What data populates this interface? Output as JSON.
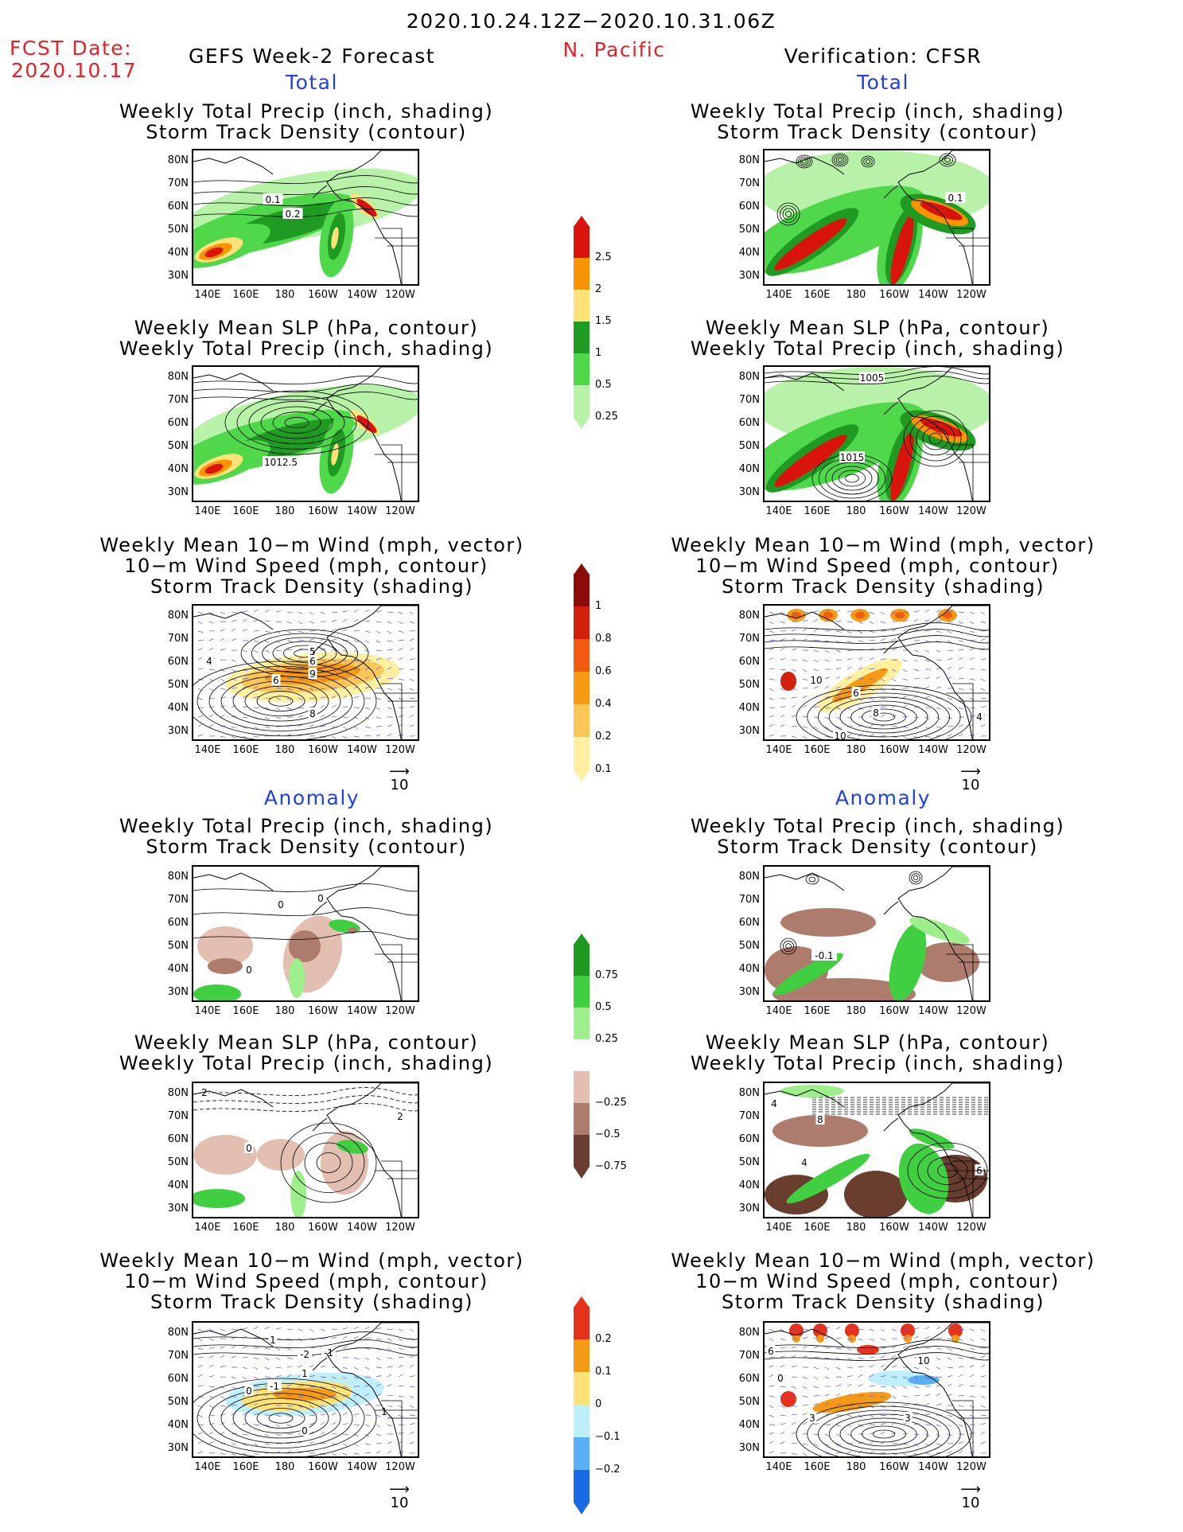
{
  "header": {
    "period": "2020.10.24.12Z−2020.10.31.06Z",
    "fcst_label": "FCST Date:",
    "fcst_date": "2020.10.17",
    "forecast_title": "GEFS Week-2 Forecast",
    "region": "N. Pacific",
    "verification_title": "Verification: CFSR"
  },
  "sections": {
    "total": "Total",
    "anomaly": "Anomaly"
  },
  "titles": {
    "precip_track": [
      "Weekly Total Precip (inch, shading)",
      "Storm Track Density (contour)"
    ],
    "slp_precip": [
      "Weekly Mean SLP (hPa, contour)",
      "Weekly Total Precip (inch, shading)"
    ],
    "wind_track": [
      "Weekly Mean 10−m Wind (mph, vector)",
      "10−m Wind Speed (mph, contour)",
      "Storm Track Density (shading)"
    ]
  },
  "axes": {
    "lat": [
      "80N",
      "70N",
      "60N",
      "50N",
      "40N",
      "30N"
    ],
    "lon": [
      "140E",
      "160E",
      "180",
      "160W",
      "140W",
      "120W"
    ]
  },
  "vector_ref": "10",
  "contour_labels": {
    "p1": [
      "0.1",
      "0.2"
    ],
    "p2": [
      "1012.5"
    ],
    "p3": [
      "4",
      "6",
      "9",
      "8",
      "6",
      "5"
    ],
    "v1": [
      "0.1"
    ],
    "v2": [
      "1005",
      "1015"
    ],
    "v3": [
      "10",
      "6",
      "8",
      "10",
      "4"
    ],
    "a1": [
      "0",
      "0",
      "0"
    ],
    "a2": [
      "2",
      "0",
      "2"
    ],
    "a3": [
      "1",
      "-2",
      "-1",
      "0",
      "-1",
      "1",
      "1",
      "0"
    ],
    "b1": [
      "-0.1"
    ],
    "b2": [
      "4",
      "8",
      "4",
      "6"
    ],
    "b3": [
      "6",
      "0",
      "10",
      "3",
      "3"
    ]
  },
  "colorbars": {
    "precip_total": {
      "labels": [
        "2.5",
        "2",
        "1.5",
        "1",
        "0.5",
        "0.25"
      ],
      "colors": [
        "#d9140c",
        "#f79400",
        "#fde27a",
        "#1f9a22",
        "#4fd94a",
        "#b7f2a8"
      ]
    },
    "track_total": {
      "labels": [
        "1",
        "0.8",
        "0.6",
        "0.4",
        "0.2",
        "0.1"
      ],
      "colors": [
        "#8c0a0a",
        "#d2200c",
        "#f25a10",
        "#f69a14",
        "#fbc658",
        "#fef0a0"
      ]
    },
    "precip_anom": {
      "labels": [
        "0.75",
        "0.5",
        "0.25",
        "−0.25",
        "−0.5",
        "−0.75"
      ],
      "colors": [
        "#1e9a22",
        "#3fcf40",
        "#9cef8a",
        "#ffffff",
        "#e2bfb1",
        "#ad7c6c",
        "#6a3e2e"
      ]
    },
    "track_anom": {
      "labels": [
        "0.2",
        "0.1",
        "0",
        "−0.1",
        "−0.2"
      ],
      "colors": [
        "#e6321a",
        "#f59a14",
        "#fde27a",
        "#bfeffc",
        "#5aaef2",
        "#1a6ae6"
      ]
    }
  }
}
